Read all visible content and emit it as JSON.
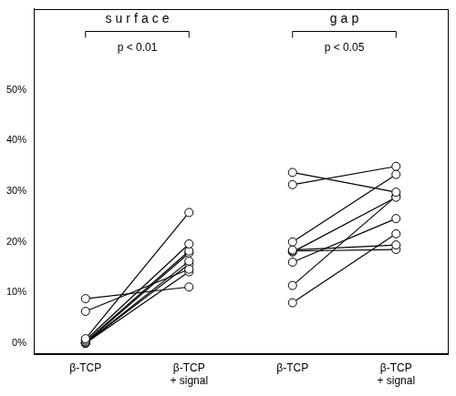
{
  "chart_data": {
    "type": "line",
    "categories": [
      "β-TCP",
      "β-TCP\n+ signal",
      "β-TCP",
      "β-TCP\n+ signal"
    ],
    "ylim": [
      -2,
      66
    ],
    "yticks": [
      {
        "value": 0,
        "label": "0%"
      },
      {
        "value": 10,
        "label": "10%"
      },
      {
        "value": 20,
        "label": "20%"
      },
      {
        "value": 30,
        "label": "30%"
      },
      {
        "value": 40,
        "label": "40%"
      },
      {
        "value": 50,
        "label": "50%"
      }
    ],
    "grid": false,
    "color": "#000000",
    "marker": "circle",
    "line_style": "solid",
    "brackets": [
      {
        "label": "surface",
        "annotation": "p < 0.01",
        "from": 0,
        "to": 1
      },
      {
        "label": "gap",
        "annotation": "p < 0.05",
        "from": 2,
        "to": 3
      }
    ],
    "series": [
      {
        "values": [
          8.8,
          11.1,
          null,
          null
        ]
      },
      {
        "values": [
          6.3,
          14.6,
          null,
          null
        ]
      },
      {
        "values": [
          0.9,
          25.8,
          null,
          null
        ]
      },
      {
        "values": [
          0.6,
          19.6,
          null,
          null
        ]
      },
      {
        "values": [
          0.3,
          18.2,
          null,
          null
        ]
      },
      {
        "values": [
          0.1,
          17.8,
          null,
          null
        ]
      },
      {
        "values": [
          0,
          16.2,
          null,
          null
        ]
      },
      {
        "values": [
          0,
          15.6,
          null,
          null
        ]
      },
      {
        "values": [
          0,
          14.1,
          null,
          null
        ]
      },
      {
        "values": [
          null,
          null,
          33.7,
          29.8
        ]
      },
      {
        "values": [
          null,
          null,
          31.3,
          34.9
        ]
      },
      {
        "values": [
          null,
          null,
          20.0,
          33.3
        ]
      },
      {
        "values": [
          null,
          null,
          18.4,
          19.4
        ]
      },
      {
        "values": [
          null,
          null,
          18.2,
          18.5
        ]
      },
      {
        "values": [
          null,
          null,
          18.0,
          28.8
        ]
      },
      {
        "values": [
          null,
          null,
          16.0,
          24.6
        ]
      },
      {
        "values": [
          null,
          null,
          11.4,
          29.0
        ]
      },
      {
        "values": [
          null,
          null,
          8.0,
          21.6
        ]
      }
    ]
  }
}
